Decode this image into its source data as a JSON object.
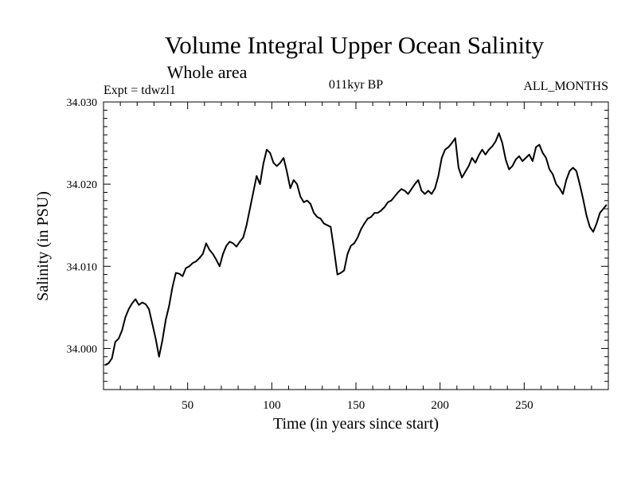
{
  "chart_data": {
    "type": "line",
    "title": "Volume Integral Upper Ocean Salinity",
    "subtitle": "Whole area",
    "expt_label": "Expt = tdwzl1",
    "period_label": "011kyr BP",
    "months_label": "ALL_MONTHS",
    "xlabel": "Time (in years since start)",
    "ylabel": "Salinity (in PSU)",
    "xlim": [
      0,
      300
    ],
    "ylim": [
      33.995,
      34.03
    ],
    "xticks": [
      50,
      100,
      150,
      200,
      250
    ],
    "xtick_labels": [
      "50",
      "100",
      "150",
      "200",
      "250"
    ],
    "yticks": [
      34.0,
      34.01,
      34.02,
      34.03
    ],
    "ytick_labels": [
      "34.000",
      "34.010",
      "34.020",
      "34.030"
    ],
    "grid": false,
    "series": [
      {
        "name": "Salinity",
        "color": "#000000",
        "x": [
          1,
          3,
          5,
          7,
          9,
          11,
          13,
          15,
          17,
          19,
          21,
          23,
          25,
          27,
          29,
          31,
          33,
          35,
          37,
          39,
          41,
          43,
          45,
          47,
          49,
          51,
          53,
          55,
          57,
          59,
          61,
          63,
          65,
          67,
          69,
          71,
          73,
          75,
          77,
          79,
          81,
          83,
          85,
          87,
          89,
          91,
          93,
          95,
          97,
          99,
          101,
          103,
          105,
          107,
          109,
          111,
          113,
          115,
          117,
          119,
          121,
          123,
          125,
          127,
          129,
          131,
          133,
          135,
          137,
          139,
          141,
          143,
          145,
          147,
          149,
          151,
          153,
          155,
          157,
          159,
          161,
          163,
          165,
          167,
          169,
          171,
          173,
          175,
          177,
          179,
          181,
          183,
          185,
          187,
          189,
          191,
          193,
          195,
          197,
          199,
          201,
          203,
          205,
          207,
          209,
          211,
          213,
          215,
          217,
          219,
          221,
          223,
          225,
          227,
          229,
          231,
          233,
          235,
          237,
          239,
          241,
          243,
          245,
          247,
          249,
          251,
          253,
          255,
          257,
          259,
          261,
          263,
          265,
          267,
          269,
          271,
          273,
          275,
          277,
          279,
          281,
          283,
          285,
          287,
          289,
          291,
          293,
          295,
          297,
          299
        ],
        "values": [
          33.998,
          33.9982,
          33.9988,
          34.0008,
          34.0012,
          34.0022,
          34.0038,
          34.0048,
          34.0055,
          34.006,
          34.0053,
          34.0056,
          34.0054,
          34.0048,
          34.003,
          34.0012,
          33.999,
          34.001,
          34.0035,
          34.0052,
          34.0075,
          34.0092,
          34.0091,
          34.0088,
          34.0098,
          34.01,
          34.0104,
          34.0106,
          34.011,
          34.0115,
          34.0128,
          34.012,
          34.0115,
          34.0108,
          34.01,
          34.0115,
          34.0125,
          34.013,
          34.0128,
          34.0124,
          34.013,
          34.0135,
          34.015,
          34.017,
          34.019,
          34.021,
          34.02,
          34.0225,
          34.0242,
          34.0238,
          34.0226,
          34.0222,
          34.0226,
          34.0232,
          34.0215,
          34.0195,
          34.0205,
          34.02,
          34.0185,
          34.0178,
          34.018,
          34.0176,
          34.0165,
          34.016,
          34.0158,
          34.0152,
          34.015,
          34.0148,
          34.012,
          34.009,
          34.0092,
          34.0095,
          34.0115,
          34.0125,
          34.0128,
          34.0135,
          34.0145,
          34.0152,
          34.0158,
          34.016,
          34.0165,
          34.0165,
          34.0168,
          34.0172,
          34.0178,
          34.018,
          34.0185,
          34.019,
          34.0194,
          34.0192,
          34.0188,
          34.0194,
          34.02,
          34.0205,
          34.0192,
          34.0188,
          34.0192,
          34.0188,
          34.0195,
          34.021,
          34.0232,
          34.0242,
          34.0245,
          34.025,
          34.0256,
          34.022,
          34.0208,
          34.0215,
          34.0222,
          34.0232,
          34.0226,
          34.0235,
          34.0242,
          34.0236,
          34.0242,
          34.0246,
          34.0252,
          34.0262,
          34.025,
          34.023,
          34.0218,
          34.0222,
          34.023,
          34.0234,
          34.0228,
          34.0232,
          34.0236,
          34.0228,
          34.0245,
          34.0248,
          34.0238,
          34.0232,
          34.0218,
          34.0212,
          34.02,
          34.0195,
          34.0188,
          34.0205,
          34.0216,
          34.022,
          34.0216,
          34.02,
          34.0182,
          34.0162,
          34.0148,
          34.0142,
          34.0152,
          34.0165,
          34.017,
          34.0175
        ]
      }
    ]
  }
}
